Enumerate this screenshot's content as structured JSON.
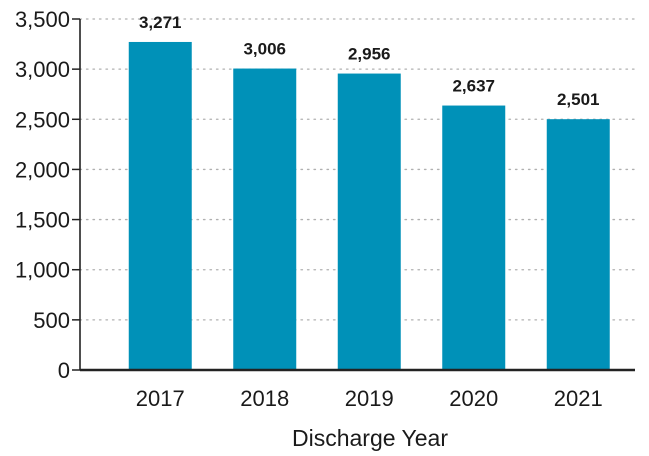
{
  "chart_data": {
    "type": "bar",
    "title": "",
    "xlabel": "Discharge Year",
    "ylabel": "",
    "categories": [
      "2017",
      "2018",
      "2019",
      "2020",
      "2021"
    ],
    "values": [
      3271,
      3006,
      2956,
      2637,
      2501
    ],
    "value_labels": [
      "3,271",
      "3,006",
      "2,956",
      "2,637",
      "2,501"
    ],
    "ylim": [
      0,
      3500
    ],
    "yticks": [
      0,
      500,
      1000,
      1500,
      2000,
      2500,
      3000,
      3500
    ],
    "ytick_labels": [
      "0",
      "500",
      "1,000",
      "1,500",
      "2,000",
      "2,500",
      "3,000",
      "3,500"
    ],
    "grid": true,
    "grid_style": "dotted",
    "legend": "none",
    "bar_color": "#0091b8",
    "axis_color": "#222222",
    "grid_color": "#b0b0b0",
    "text_color": "#1a1a1a"
  }
}
